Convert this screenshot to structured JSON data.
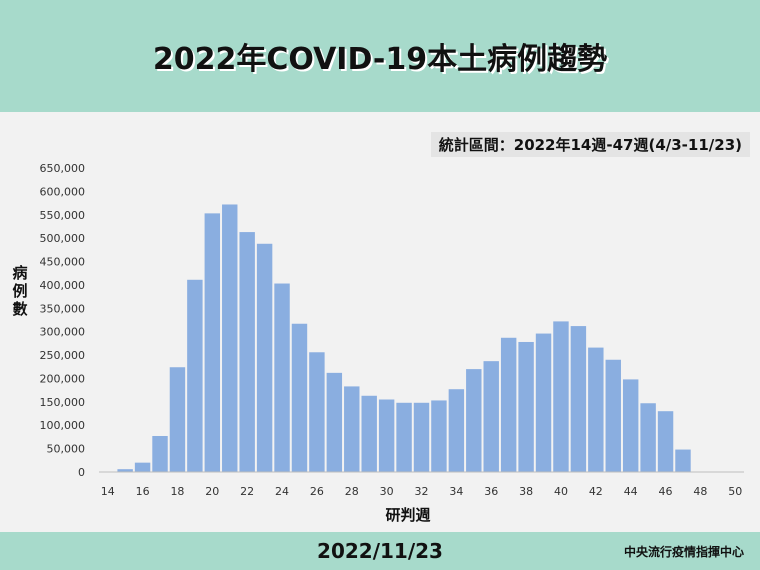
{
  "title": "2022年COVID-19本土病例趨勢",
  "period_label": "統計區間：2022年14週-47週(4/3-11/23)",
  "footer": {
    "date": "2022/11/23",
    "org": "中央流行疫情指揮中心"
  },
  "colors": {
    "bar": "#8aaee0",
    "header_bg": "#a7dacb",
    "background": "#f2f2f2"
  },
  "chart_data": {
    "type": "bar",
    "xlabel": "研判週",
    "ylabel": "病例數",
    "ylim": [
      0,
      650000
    ],
    "yticks": [
      0,
      50000,
      100000,
      150000,
      200000,
      250000,
      300000,
      350000,
      400000,
      450000,
      500000,
      550000,
      600000,
      650000
    ],
    "ytick_labels": [
      "0",
      "50,000",
      "100,000",
      "150,000",
      "200,000",
      "250,000",
      "300,000",
      "350,000",
      "400,000",
      "450,000",
      "500,000",
      "550,000",
      "600,000",
      "650,000"
    ],
    "xtick_labels": [
      "14",
      "16",
      "18",
      "20",
      "22",
      "24",
      "26",
      "28",
      "30",
      "32",
      "34",
      "36",
      "38",
      "40",
      "42",
      "44",
      "46",
      "48",
      "50"
    ],
    "categories": [
      14,
      15,
      16,
      17,
      18,
      19,
      20,
      21,
      22,
      23,
      24,
      25,
      26,
      27,
      28,
      29,
      30,
      31,
      32,
      33,
      34,
      35,
      36,
      37,
      38,
      39,
      40,
      41,
      42,
      43,
      44,
      45,
      46,
      47,
      48,
      49,
      50
    ],
    "values": [
      1000,
      6000,
      20000,
      77000,
      224000,
      411000,
      553000,
      572000,
      513000,
      488000,
      403000,
      317000,
      256000,
      212000,
      183000,
      163000,
      155000,
      148000,
      148000,
      153000,
      177000,
      220000,
      237000,
      287000,
      278000,
      296000,
      322000,
      312000,
      266000,
      240000,
      198000,
      147000,
      130000,
      48000,
      1000,
      1000,
      1000
    ],
    "grid": false
  }
}
